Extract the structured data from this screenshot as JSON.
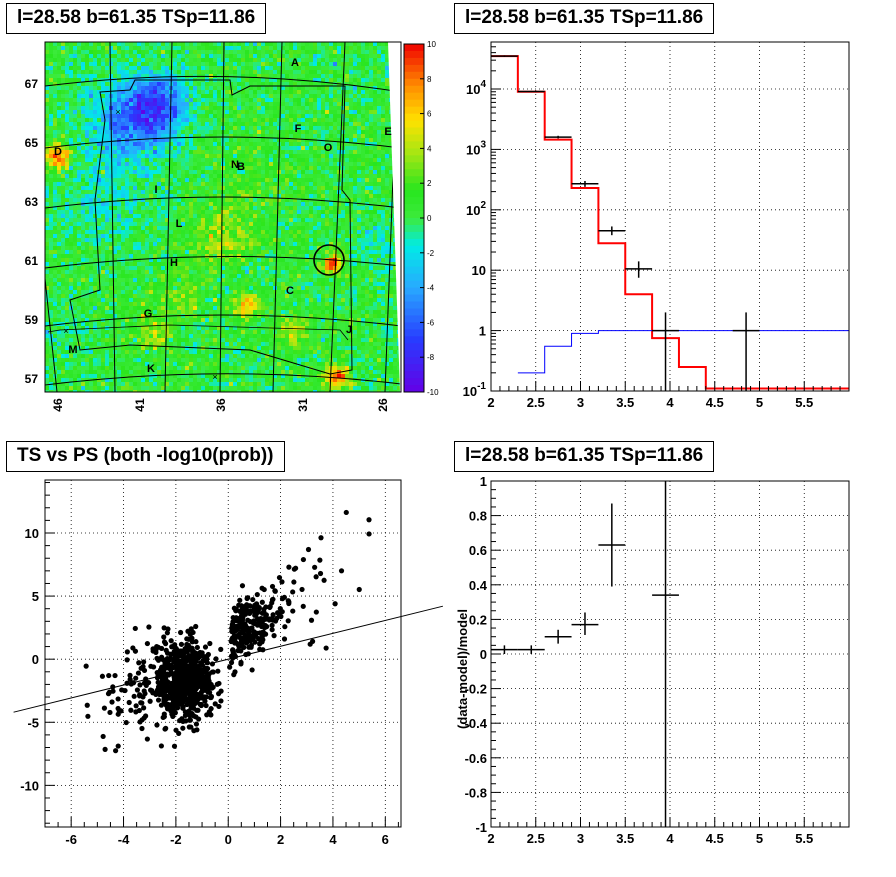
{
  "panels": {
    "map_title": "l=28.58 b=61.35 TSp=11.86",
    "spectrum_title": "l=28.58 b=61.35 TSp=11.86",
    "scatter_title": "TS vs PS (both -log10(prob))",
    "residual_title": "l=28.58 b=61.35 TSp=11.86"
  },
  "chart_data": [
    {
      "type": "heatmap",
      "title": "l=28.58 b=61.35 TSp=11.86",
      "xlabel": "",
      "ylabel": "",
      "x_ticks": [
        "46",
        "41",
        "36",
        "31",
        "26"
      ],
      "y_ticks": [
        "67",
        "65",
        "63",
        "61",
        "59",
        "57"
      ],
      "colorbar_ticks": [
        "10",
        "8",
        "6",
        "4",
        "2",
        "0",
        "-2",
        "-4",
        "-6",
        "-8",
        "-10"
      ],
      "zlim": [
        -10,
        10
      ],
      "region_labels": [
        "A",
        "B",
        "C",
        "D",
        "E",
        "F",
        "G",
        "H",
        "I",
        "J",
        "K",
        "L",
        "M",
        "O"
      ],
      "marked_source": {
        "l": 28.58,
        "b": 61.35
      }
    },
    {
      "type": "line",
      "title": "l=28.58 b=61.35 TSp=11.86",
      "xlabel": "",
      "ylabel": "",
      "xlim": [
        2,
        6
      ],
      "ylim": [
        0.1,
        60000
      ],
      "y_scale": "log",
      "grid": true,
      "x_ticks": [
        "2",
        "2.5",
        "3",
        "3.5",
        "4",
        "4.5",
        "5",
        "5.5"
      ],
      "y_ticks": [
        "10^{-1}",
        "1",
        "10",
        "10^{2}",
        "10^{3}",
        "10^{4}"
      ],
      "series": [
        {
          "style": "step",
          "color": "#ff0000",
          "edges": [
            2.0,
            2.3,
            2.6,
            2.9,
            3.2,
            3.5,
            3.8,
            4.1,
            4.4,
            4.7,
            5.0,
            5.3,
            5.6,
            6.0
          ],
          "values": [
            35000,
            9000,
            1450,
            230,
            28,
            4,
            0.75,
            0.25,
            0.11,
            0.11,
            0.11,
            0.11,
            0.11
          ]
        },
        {
          "style": "step",
          "color": "#0000ff",
          "edges": [
            2.3,
            2.6,
            2.9,
            3.2,
            3.5,
            3.8,
            4.1,
            4.4,
            4.7,
            5.0,
            5.3,
            5.6,
            6.0
          ],
          "values": [
            0.2,
            0.55,
            0.9,
            1.0,
            1.0,
            1.0,
            1.0,
            1.0,
            1.0,
            1.0,
            1.0,
            1.0
          ]
        },
        {
          "style": "errorbar",
          "color": "#000000",
          "points": [
            {
              "x": 2.15,
              "y": 35000,
              "xerr": 0.15,
              "ylo": 34000,
              "yhi": 36000
            },
            {
              "x": 2.45,
              "y": 9100,
              "xerr": 0.15,
              "ylo": 8900,
              "yhi": 9300
            },
            {
              "x": 2.75,
              "y": 1600,
              "xerr": 0.15,
              "ylo": 1520,
              "yhi": 1680
            },
            {
              "x": 3.05,
              "y": 270,
              "xerr": 0.15,
              "ylo": 240,
              "yhi": 300
            },
            {
              "x": 3.35,
              "y": 45,
              "xerr": 0.15,
              "ylo": 38,
              "yhi": 53
            },
            {
              "x": 3.65,
              "y": 10.5,
              "xerr": 0.15,
              "ylo": 7.5,
              "yhi": 14
            },
            {
              "x": 3.95,
              "y": 1.0,
              "xerr": 0.15,
              "ylo": 0.1,
              "yhi": 2.0
            },
            {
              "x": 4.85,
              "y": 1.0,
              "xerr": 0.15,
              "ylo": 0.1,
              "yhi": 2.0
            }
          ]
        }
      ]
    },
    {
      "type": "scatter",
      "title": "TS vs PS (both -log10(prob))",
      "xlabel": "",
      "ylabel": "",
      "xlim": [
        -7,
        6.6
      ],
      "ylim": [
        -13.3,
        14.2
      ],
      "grid": true,
      "x_ticks": [
        "-6",
        "-4",
        "-2",
        "0",
        "2",
        "4",
        "6"
      ],
      "y_ticks": [
        "-10",
        "-5",
        "0",
        "5",
        "10"
      ],
      "reference_line": {
        "x1": -8.2,
        "y1": -4.2,
        "x2": 8.2,
        "y2": 4.2
      },
      "point_count_approx": 1000,
      "spread": "dense core around the origin, positive x correlated with positive y up to about x=5.5, y=12"
    },
    {
      "type": "scatter",
      "title": "l=28.58 b=61.35 TSp=11.86",
      "xlabel": "",
      "ylabel": "(data-model)/model",
      "xlim": [
        2,
        6
      ],
      "ylim": [
        -1,
        1
      ],
      "grid": true,
      "x_ticks": [
        "2",
        "2.5",
        "3",
        "3.5",
        "4",
        "4.5",
        "5",
        "5.5"
      ],
      "y_ticks": [
        "-1",
        "-0.8",
        "-0.6",
        "-0.4",
        "-0.2",
        "0",
        "0.2",
        "0.4",
        "0.6",
        "0.8",
        "1"
      ],
      "points": [
        {
          "x": 2.15,
          "y": 0.025,
          "xerr": 0.15,
          "ylo": 0.0,
          "yhi": 0.05
        },
        {
          "x": 2.45,
          "y": 0.025,
          "xerr": 0.15,
          "ylo": 0.0,
          "yhi": 0.05
        },
        {
          "x": 2.75,
          "y": 0.1,
          "xerr": 0.15,
          "ylo": 0.06,
          "yhi": 0.14
        },
        {
          "x": 3.05,
          "y": 0.17,
          "xerr": 0.15,
          "ylo": 0.11,
          "yhi": 0.24
        },
        {
          "x": 3.35,
          "y": 0.63,
          "xerr": 0.15,
          "ylo": 0.39,
          "yhi": 0.87
        },
        {
          "x": 3.95,
          "y": 0.34,
          "xerr": 0.15,
          "ylo": -1.0,
          "yhi": 1.0
        }
      ]
    }
  ]
}
